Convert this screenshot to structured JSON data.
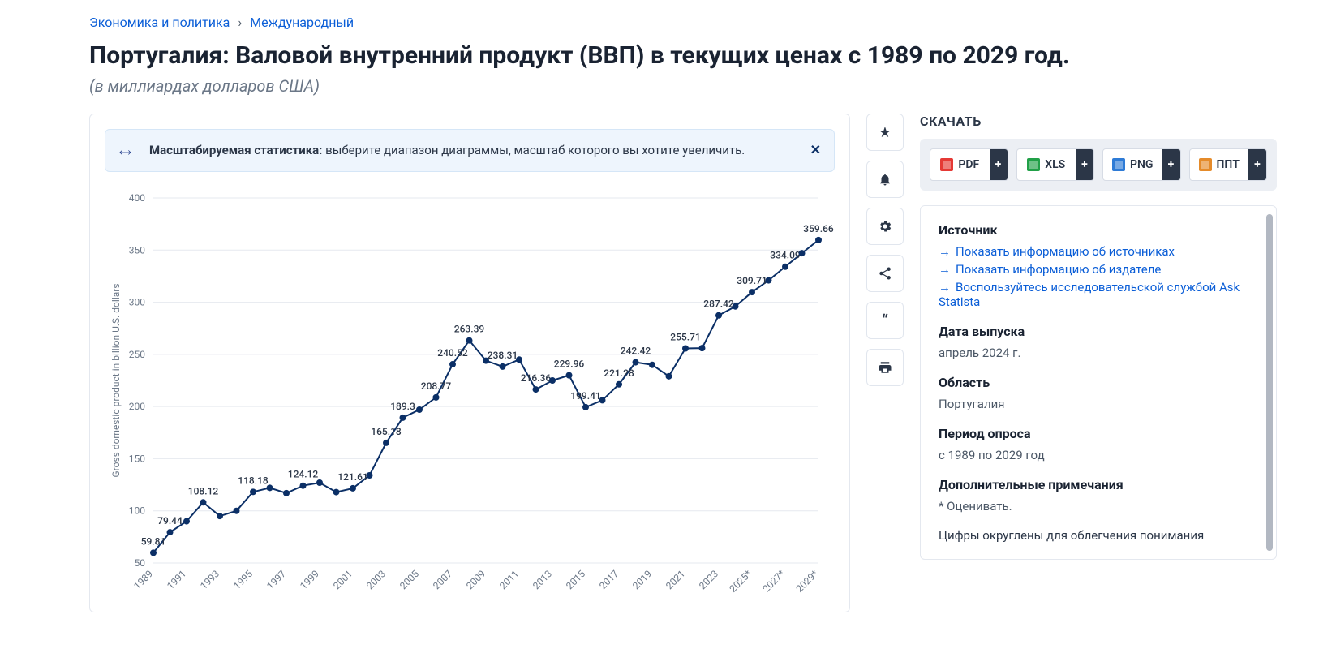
{
  "breadcrumb": {
    "a": "Экономика и политика",
    "b": "Международный"
  },
  "title": "Португалия: Валовой внутренний продукт (ВВП) в текущих ценах с 1989 по 2029 год.",
  "subtitle": "(в миллиардах долларов США)",
  "banner": {
    "strong": "Масштабируемая статистика:",
    "rest": " выберите диапазон диаграммы, масштаб которого вы хотите увеличить."
  },
  "chart": {
    "type": "line",
    "y_axis_title": "Gross domestic product in billion U.S. dollars",
    "ylim": [
      50,
      400
    ],
    "yticks": [
      50,
      100,
      150,
      200,
      250,
      300,
      350,
      400
    ],
    "xlabels": [
      "1989",
      "1991",
      "1993",
      "1995",
      "1997",
      "1999",
      "2001",
      "2003",
      "2005",
      "2007",
      "2009",
      "2011",
      "2013",
      "2015",
      "2017",
      "2019",
      "2021",
      "2023",
      "2025*",
      "2027*",
      "2029*"
    ],
    "background_color": "#ffffff",
    "line_color": "#0b2f66",
    "marker_color": "#0b2f66",
    "grid_color": "#e6e9ef",
    "label_color": "#2b3647",
    "axis_label_color": "#6b7787",
    "line_width": 2,
    "marker_radius": 4,
    "label_fontsize": 12,
    "points": [
      {
        "x": "1989",
        "y": 59.81,
        "label": "59.81"
      },
      {
        "x": "1990",
        "y": 79.44,
        "label": "79.44"
      },
      {
        "x": "1991",
        "y": 90,
        "label": ""
      },
      {
        "x": "1992",
        "y": 108.12,
        "label": "108.12"
      },
      {
        "x": "1993",
        "y": 95,
        "label": ""
      },
      {
        "x": "1994",
        "y": 100,
        "label": ""
      },
      {
        "x": "1995",
        "y": 118.18,
        "label": "118.18"
      },
      {
        "x": "1996",
        "y": 122,
        "label": ""
      },
      {
        "x": "1997",
        "y": 117,
        "label": ""
      },
      {
        "x": "1998",
        "y": 124.12,
        "label": "124.12"
      },
      {
        "x": "1999",
        "y": 127,
        "label": ""
      },
      {
        "x": "2000",
        "y": 118,
        "label": ""
      },
      {
        "x": "2001",
        "y": 121.61,
        "label": "121.61"
      },
      {
        "x": "2002",
        "y": 134,
        "label": ""
      },
      {
        "x": "2003",
        "y": 165.18,
        "label": "165.18"
      },
      {
        "x": "2004",
        "y": 189.3,
        "label": "189.3"
      },
      {
        "x": "2005",
        "y": 197,
        "label": ""
      },
      {
        "x": "2006",
        "y": 208.77,
        "label": "208.77"
      },
      {
        "x": "2007",
        "y": 240.52,
        "label": "240.52"
      },
      {
        "x": "2008",
        "y": 263.39,
        "label": "263.39"
      },
      {
        "x": "2009",
        "y": 244,
        "label": ""
      },
      {
        "x": "2010",
        "y": 238.31,
        "label": "238.31"
      },
      {
        "x": "2011",
        "y": 245,
        "label": ""
      },
      {
        "x": "2012",
        "y": 216.36,
        "label": "216.36"
      },
      {
        "x": "2013",
        "y": 225,
        "label": ""
      },
      {
        "x": "2014",
        "y": 229.96,
        "label": "229.96"
      },
      {
        "x": "2015",
        "y": 199.41,
        "label": "199.41"
      },
      {
        "x": "2016",
        "y": 206,
        "label": ""
      },
      {
        "x": "2017",
        "y": 221.28,
        "label": "221.28"
      },
      {
        "x": "2018",
        "y": 242.42,
        "label": "242.42"
      },
      {
        "x": "2019",
        "y": 240,
        "label": ""
      },
      {
        "x": "2020",
        "y": 229,
        "label": ""
      },
      {
        "x": "2021",
        "y": 255.71,
        "label": "255.71"
      },
      {
        "x": "2022",
        "y": 256,
        "label": ""
      },
      {
        "x": "2023",
        "y": 287.42,
        "label": "287.42"
      },
      {
        "x": "2024",
        "y": 296,
        "label": ""
      },
      {
        "x": "2025*",
        "y": 309.71,
        "label": "309.71"
      },
      {
        "x": "2026*",
        "y": 321,
        "label": ""
      },
      {
        "x": "2027*",
        "y": 334.09,
        "label": "334.09"
      },
      {
        "x": "2028*",
        "y": 347,
        "label": ""
      },
      {
        "x": "2029*",
        "y": 359.66,
        "label": "359.66"
      }
    ]
  },
  "download": {
    "heading": "СКАЧАТЬ",
    "buttons": {
      "pdf": "PDF",
      "xls": "XLS",
      "png": "PNG",
      "ppt": "ППТ"
    }
  },
  "meta": {
    "source_heading": "Источник",
    "source_links": {
      "a": "Показать информацию об источниках",
      "b": "Показать информацию об издателе",
      "c": "Воспользуйтесь исследовательской службой Ask Statista"
    },
    "release_heading": "Дата выпуска",
    "release_value": "апрель 2024 г.",
    "region_heading": "Область",
    "region_value": "Португалия",
    "period_heading": "Период опроса",
    "period_value": "с 1989 по 2029 год",
    "notes_heading": "Дополнительные примечания",
    "notes_value": "* Оценивать.",
    "rounding_note": "Цифры округлены для облегчения понимания"
  }
}
